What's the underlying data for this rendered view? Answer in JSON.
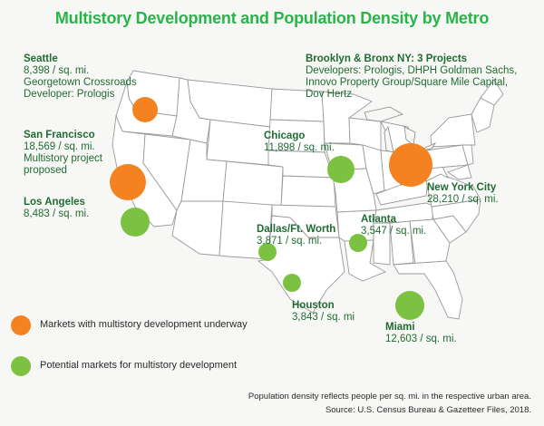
{
  "title": "Multistory Development and Population Density by Metro",
  "colors": {
    "title": "#2bb34b",
    "underway": "#f58220",
    "potential": "#7cc242",
    "label_text": "#1f6b32"
  },
  "markets": {
    "seattle": {
      "city": "Seattle",
      "density": "8,398 / sq. mi.",
      "note1": "Georgetown Crossroads",
      "note2": "Developer: Prologis",
      "status": "underway"
    },
    "san_francisco": {
      "city": "San Francisco",
      "density": "18,569 / sq. mi.",
      "note1": "Multistory project",
      "note2": "proposed",
      "status": "underway"
    },
    "los_angeles": {
      "city": "Los Angeles",
      "density": "8,483 / sq. mi.",
      "status": "potential"
    },
    "chicago": {
      "city": "Chicago",
      "density": "11,898 / sq. mi.",
      "status": "potential"
    },
    "brooklyn_bronx": {
      "city": "Brooklyn & Bronx NY: 3 Projects",
      "note1": "Developers: Prologis, DHPH Goldman Sachs,",
      "note2": "Innovo Property Group/Square Mile Capital,",
      "note3": "Dov Hertz",
      "status": "underway"
    },
    "new_york": {
      "city": "New York City",
      "density": "28,210 / sq. mi.",
      "status": "underway"
    },
    "dallas": {
      "city": "Dallas/Ft. Worth",
      "density": "3,871 / sq. mi.",
      "status": "potential"
    },
    "atlanta": {
      "city": "Atlanta",
      "density": "3,547 / sq. mi.",
      "status": "potential"
    },
    "houston": {
      "city": "Houston",
      "density": "3,843 / sq. mi",
      "status": "potential"
    },
    "miami": {
      "city": "Miami",
      "density": "12,603 / sq. mi.",
      "status": "potential"
    }
  },
  "legend": {
    "underway": "Markets with multistory development underway",
    "potential": "Potential markets for multistory development"
  },
  "footnote": {
    "line1": "Population density reflects people per sq. mi. in the respective urban area.",
    "line2": "Source: U.S. Census Bureau & Gazetteer Files, 2018."
  }
}
